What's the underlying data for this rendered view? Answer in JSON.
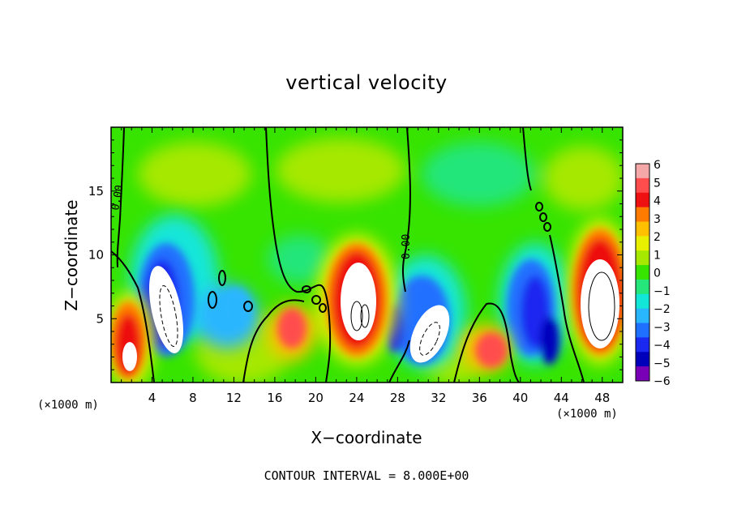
{
  "chart_data": {
    "type": "heatmap",
    "title": "vertical velocity",
    "xlabel": "X−coordinate",
    "ylabel": "Z−coordinate",
    "x_unit_left": "(×1000 m)",
    "x_unit_right": "(×1000 m)",
    "xlim": [
      0,
      50
    ],
    "ylim": [
      0,
      20
    ],
    "x_ticks": [
      4,
      8,
      12,
      16,
      20,
      24,
      28,
      32,
      36,
      40,
      44,
      48
    ],
    "y_ticks": [
      5,
      10,
      15
    ],
    "colorbar": {
      "ticks": [
        "6",
        "5",
        "4",
        "3",
        "2",
        "1",
        "0",
        "−1",
        "−2",
        "−3",
        "−4",
        "−5",
        "−6"
      ],
      "colors": [
        "#f4a8a8",
        "#ff4d4d",
        "#ee1111",
        "#ff7b00",
        "#ffc000",
        "#e8f000",
        "#a6e800",
        "#36e400",
        "#24e67a",
        "#12e6d9",
        "#29b6ff",
        "#2070ff",
        "#1a28f0",
        "#0000bb",
        "#7a00b8"
      ]
    },
    "contour_label": "0.00",
    "footer": "CONTOUR INTERVAL = 8.000E+00"
  }
}
